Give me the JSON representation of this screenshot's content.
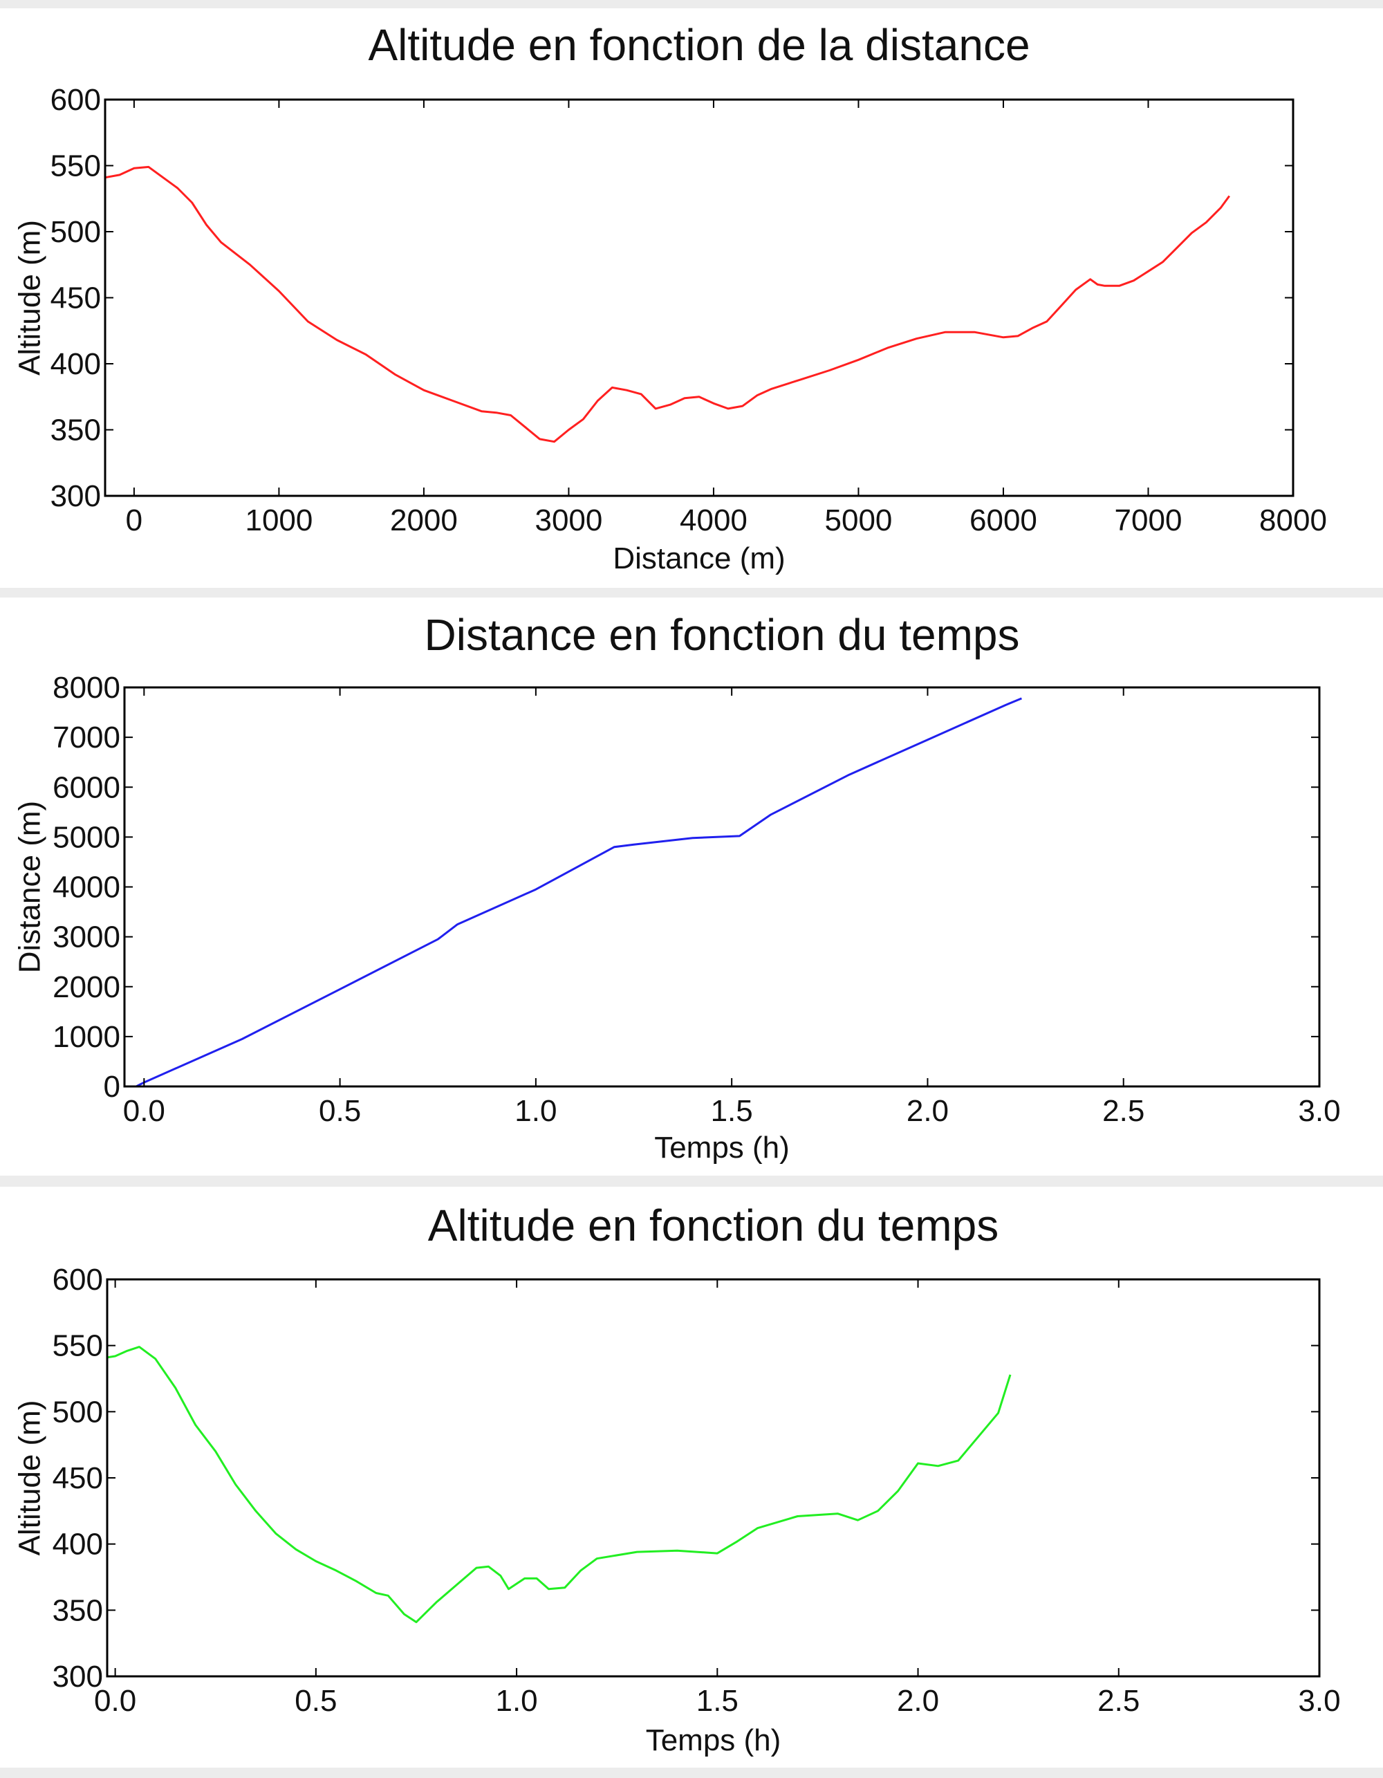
{
  "chart_data": [
    {
      "type": "line",
      "title": "Altitude en fonction de la distance",
      "xlabel": "Distance (m)",
      "ylabel": "Altitude (m)",
      "xlim": [
        -200,
        8000
      ],
      "ylim": [
        300,
        600
      ],
      "xticks": [
        0,
        1000,
        2000,
        3000,
        4000,
        5000,
        6000,
        7000,
        8000
      ],
      "yticks": [
        300,
        350,
        400,
        450,
        500,
        550,
        600
      ],
      "grid": false,
      "series": [
        {
          "color": "#ff2020",
          "x": [
            -200,
            -100,
            0,
            100,
            200,
            300,
            400,
            500,
            600,
            800,
            1000,
            1200,
            1400,
            1600,
            1800,
            2000,
            2200,
            2400,
            2500,
            2600,
            2700,
            2800,
            2900,
            3000,
            3100,
            3200,
            3300,
            3400,
            3500,
            3600,
            3700,
            3800,
            3900,
            4000,
            4100,
            4200,
            4300,
            4400,
            4600,
            4800,
            5000,
            5200,
            5400,
            5600,
            5800,
            6000,
            6100,
            6200,
            6300,
            6400,
            6500,
            6600,
            6650,
            6700,
            6800,
            6900,
            7000,
            7100,
            7200,
            7300,
            7400,
            7500,
            7560
          ],
          "values": [
            541,
            543,
            548,
            549,
            541,
            533,
            522,
            505,
            492,
            475,
            455,
            432,
            418,
            407,
            392,
            380,
            372,
            364,
            363,
            361,
            352,
            343,
            341,
            350,
            358,
            372,
            382,
            380,
            377,
            366,
            369,
            374,
            375,
            370,
            366,
            368,
            376,
            381,
            388,
            395,
            403,
            412,
            419,
            424,
            424,
            420,
            421,
            427,
            432,
            444,
            456,
            464,
            460,
            459,
            459,
            463,
            470,
            477,
            488,
            499,
            507,
            518,
            527
          ]
        }
      ]
    },
    {
      "type": "line",
      "title": "Distance en fonction du temps",
      "xlabel": "Temps (h)",
      "ylabel": "Distance (m)",
      "xlim": [
        -0.05,
        3.0
      ],
      "ylim": [
        0,
        8000
      ],
      "xticks": [
        0.0,
        0.5,
        1.0,
        1.5,
        2.0,
        2.5,
        3.0
      ],
      "yticks": [
        0,
        1000,
        2000,
        3000,
        4000,
        5000,
        6000,
        7000,
        8000
      ],
      "grid": false,
      "series": [
        {
          "color": "#2020ee",
          "x": [
            -0.02,
            0.0,
            0.25,
            0.5,
            0.75,
            0.8,
            1.0,
            1.2,
            1.25,
            1.4,
            1.52,
            1.6,
            1.8,
            2.0,
            2.2,
            2.24
          ],
          "values": [
            0,
            80,
            950,
            1950,
            2950,
            3250,
            3950,
            4800,
            4850,
            4980,
            5020,
            5450,
            6250,
            6950,
            7650,
            7780
          ]
        }
      ]
    },
    {
      "type": "line",
      "title": "Altitude en fonction du temps",
      "xlabel": "Temps (h)",
      "ylabel": "Altitude (m)",
      "xlim": [
        -0.02,
        3.0
      ],
      "ylim": [
        300,
        600
      ],
      "xticks": [
        0.0,
        0.5,
        1.0,
        1.5,
        2.0,
        2.5,
        3.0
      ],
      "yticks": [
        300,
        350,
        400,
        450,
        500,
        550,
        600
      ],
      "grid": false,
      "series": [
        {
          "color": "#22ee22",
          "x": [
            -0.02,
            0.0,
            0.03,
            0.06,
            0.1,
            0.15,
            0.2,
            0.25,
            0.3,
            0.35,
            0.4,
            0.45,
            0.5,
            0.55,
            0.6,
            0.65,
            0.68,
            0.72,
            0.75,
            0.8,
            0.85,
            0.9,
            0.93,
            0.96,
            0.98,
            1.02,
            1.05,
            1.08,
            1.12,
            1.16,
            1.2,
            1.3,
            1.4,
            1.5,
            1.55,
            1.6,
            1.7,
            1.8,
            1.85,
            1.9,
            1.95,
            2.0,
            2.05,
            2.1,
            2.15,
            2.2,
            2.23
          ],
          "values": [
            541,
            542,
            546,
            549,
            540,
            518,
            490,
            470,
            445,
            425,
            408,
            396,
            387,
            380,
            372,
            363,
            361,
            347,
            341,
            356,
            369,
            382,
            383,
            376,
            366,
            374,
            374,
            366,
            367,
            380,
            389,
            394,
            395,
            393,
            402,
            412,
            421,
            423,
            418,
            425,
            440,
            461,
            459,
            463,
            481,
            499,
            528
          ]
        }
      ]
    }
  ]
}
